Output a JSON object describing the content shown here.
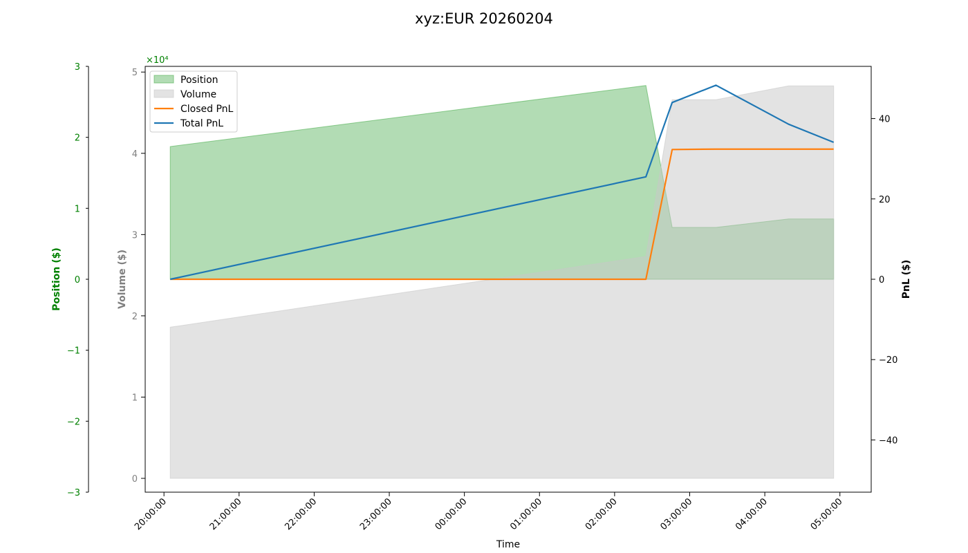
{
  "chart_data": {
    "type": "area",
    "title": "xyz:EUR 20260204",
    "xlabel": "Time",
    "x_ticks": [
      "20:00:00",
      "21:00:00",
      "22:00:00",
      "23:00:00",
      "00:00:00",
      "01:00:00",
      "02:00:00",
      "03:00:00",
      "04:00:00",
      "05:00:00"
    ],
    "axes": {
      "position": {
        "label": "Position ($)",
        "color": "#008000",
        "ylim": [
          -3,
          3
        ],
        "ticks": [
          "3",
          "2",
          "1",
          "0",
          "−1",
          "−2",
          "−3"
        ],
        "tick_values": [
          3,
          2,
          1,
          0,
          -1,
          -2,
          -3
        ]
      },
      "volume": {
        "label": "Volume ($)",
        "color": "#808080",
        "ylim": [
          -0.17,
          5.07
        ],
        "multiplier": "×10⁴",
        "ticks": [
          "0",
          "1",
          "2",
          "3",
          "4",
          "5"
        ],
        "tick_values": [
          0,
          1,
          2,
          3,
          4,
          5
        ]
      },
      "pnl": {
        "label": "PnL ($)",
        "color": "#000000",
        "ylim": [
          -53,
          53
        ],
        "ticks": [
          "40",
          "20",
          "0",
          "−20",
          "−40"
        ],
        "tick_values": [
          40,
          20,
          0,
          -20,
          -40
        ]
      }
    },
    "x_start": "2026-02-04 19:45:00",
    "x_end": "2026-02-05 05:25:00",
    "series": [
      {
        "name": "Position",
        "kind": "area",
        "axis": "position",
        "color": "#4caf50",
        "opacity": 0.43,
        "points": [
          [
            "2026-02-04 20:05:00",
            1.87
          ],
          [
            "2026-02-05 02:25:00",
            2.73
          ],
          [
            "2026-02-05 02:46:00",
            0.73
          ],
          [
            "2026-02-05 03:21:00",
            0.73
          ],
          [
            "2026-02-05 04:19:00",
            0.85
          ],
          [
            "2026-02-05 04:55:00",
            0.85
          ]
        ]
      },
      {
        "name": "Volume",
        "kind": "area",
        "axis": "volume",
        "color": "#c8c8c8",
        "opacity": 0.5,
        "points": [
          [
            "2026-02-04 20:05:00",
            1.86
          ],
          [
            "2026-02-05 02:25:00",
            2.73
          ],
          [
            "2026-02-05 02:46:00",
            4.66
          ],
          [
            "2026-02-05 03:21:00",
            4.66
          ],
          [
            "2026-02-05 04:19:00",
            4.83
          ],
          [
            "2026-02-05 04:55:00",
            4.83
          ]
        ]
      },
      {
        "name": "Closed PnL",
        "kind": "line",
        "axis": "pnl",
        "color": "#ff7f0e",
        "points": [
          [
            "2026-02-04 20:05:00",
            0
          ],
          [
            "2026-02-05 02:25:00",
            0
          ],
          [
            "2026-02-05 02:46:00",
            32.3
          ],
          [
            "2026-02-05 03:21:00",
            32.4
          ],
          [
            "2026-02-05 04:19:00",
            32.4
          ],
          [
            "2026-02-05 04:55:00",
            32.4
          ]
        ]
      },
      {
        "name": "Total PnL",
        "kind": "line",
        "axis": "pnl",
        "color": "#1f77b4",
        "points": [
          [
            "2026-02-04 20:05:00",
            0
          ],
          [
            "2026-02-05 02:25:00",
            25.5
          ],
          [
            "2026-02-05 02:46:00",
            44.0
          ],
          [
            "2026-02-05 03:21:00",
            48.3
          ],
          [
            "2026-02-05 04:19:00",
            38.6
          ],
          [
            "2026-02-05 04:55:00",
            34.1
          ]
        ]
      }
    ],
    "legend": {
      "placement": "top-left",
      "entries": [
        "Position",
        "Volume",
        "Closed PnL",
        "Total PnL"
      ]
    },
    "grid": false
  }
}
